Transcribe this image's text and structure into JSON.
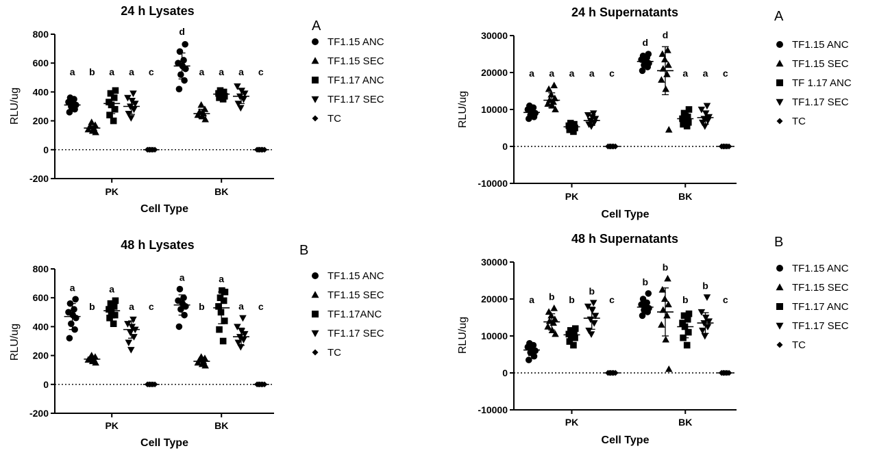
{
  "chart_data": [
    {
      "type": "scatter",
      "title": "24 h Lysates",
      "panel_letter": "A",
      "xlabel": "Cell Type",
      "ylabel": "RLU/ug",
      "categories": [
        "PK",
        "BK"
      ],
      "ylim": [
        -200,
        800
      ],
      "yticks": [
        -200,
        0,
        200,
        400,
        600,
        800
      ],
      "legend": [
        "TF1.15 ANC",
        "TF1.15 SEC",
        "TF1.17 ANC",
        "TF1.17 SEC",
        "TC"
      ],
      "legend_position": "right",
      "series": [
        {
          "name": "TF1.15 ANC",
          "marker": "circle",
          "PK": {
            "points": [
              260,
              280,
              300,
              310,
              320,
              330,
              350,
              360
            ],
            "mean": 310,
            "sd": 30
          },
          "BK": {
            "points": [
              420,
              480,
              520,
              560,
              580,
              600,
              620,
              680,
              730
            ],
            "mean": 580,
            "sd": 90
          }
        },
        {
          "name": "TF1.15 SEC",
          "marker": "triangle-up",
          "PK": {
            "points": [
              120,
              130,
              140,
              150,
              160,
              170,
              190
            ],
            "mean": 150,
            "sd": 25
          },
          "BK": {
            "points": [
              210,
              230,
              240,
              250,
              260,
              280,
              310
            ],
            "mean": 250,
            "sd": 30
          }
        },
        {
          "name": "TF1.17 ANC",
          "marker": "square",
          "PK": {
            "points": [
              200,
              240,
              280,
              310,
              330,
              360,
              390,
              410
            ],
            "mean": 320,
            "sd": 70
          },
          "BK": {
            "points": [
              350,
              360,
              370,
              380,
              390,
              400,
              410
            ],
            "mean": 385,
            "sd": 20
          }
        },
        {
          "name": "TF1.17 SEC",
          "marker": "triangle-down",
          "PK": {
            "points": [
              220,
              250,
              280,
              300,
              320,
              340,
              360,
              390
            ],
            "mean": 300,
            "sd": 55
          },
          "BK": {
            "points": [
              290,
              320,
              350,
              370,
              390,
              410,
              440
            ],
            "mean": 370,
            "sd": 50
          }
        },
        {
          "name": "TC",
          "marker": "diamond",
          "PK": {
            "points": [
              0,
              0,
              0,
              0,
              0,
              0
            ],
            "mean": 0,
            "sd": 0
          },
          "BK": {
            "points": [
              0,
              0,
              0,
              0,
              0,
              0
            ],
            "mean": 0,
            "sd": 0
          }
        }
      ],
      "significance": {
        "PK": [
          "a",
          "b",
          "a",
          "a",
          "c"
        ],
        "BK": [
          "d",
          "a",
          "a",
          "a",
          "c"
        ]
      }
    },
    {
      "type": "scatter",
      "title": "24 h Supernatants",
      "panel_letter": "A",
      "xlabel": "Cell Type",
      "ylabel": "RLU/ug",
      "categories": [
        "PK",
        "BK"
      ],
      "ylim": [
        -10000,
        30000
      ],
      "yticks": [
        -10000,
        0,
        10000,
        20000,
        30000
      ],
      "legend": [
        "TF1.15 ANC",
        "TF1.15 SEC",
        "TF 1.17 ANC",
        "TF1.17 SEC",
        "TC"
      ],
      "legend_position": "right",
      "series": [
        {
          "name": "TF1.15 ANC",
          "marker": "circle",
          "PK": {
            "points": [
              7500,
              8000,
              8500,
              9000,
              9500,
              10000,
              10500,
              11000
            ],
            "mean": 9200,
            "sd": 1200
          },
          "BK": {
            "points": [
              20500,
              21500,
              22000,
              22500,
              23000,
              23500,
              24000,
              24500,
              25000
            ],
            "mean": 23000,
            "sd": 1500
          }
        },
        {
          "name": "TF1.15 SEC",
          "marker": "triangle-up",
          "PK": {
            "points": [
              10000,
              11000,
              11500,
              12000,
              12500,
              13000,
              14000,
              15500,
              16500
            ],
            "mean": 12500,
            "sd": 2000
          },
          "BK": {
            "points": [
              4500,
              15500,
              18000,
              19500,
              21000,
              22000,
              23500,
              25000,
              26000
            ],
            "mean": 20500,
            "sd": 6500
          }
        },
        {
          "name": "TF 1.17 ANC",
          "marker": "square",
          "PK": {
            "points": [
              4000,
              4500,
              5000,
              5300,
              5600,
              6000,
              6300
            ],
            "mean": 5300,
            "sd": 700
          },
          "BK": {
            "points": [
              5500,
              6000,
              6500,
              7000,
              7500,
              8000,
              9000,
              10000
            ],
            "mean": 7500,
            "sd": 1500
          }
        },
        {
          "name": "TF1.17 SEC",
          "marker": "triangle-down",
          "PK": {
            "points": [
              5500,
              6000,
              6500,
              7000,
              7500,
              8000,
              8500,
              9000
            ],
            "mean": 7000,
            "sd": 1300
          },
          "BK": {
            "points": [
              5500,
              6500,
              7000,
              7500,
              8000,
              9000,
              10000,
              11000
            ],
            "mean": 7800,
            "sd": 1800
          }
        },
        {
          "name": "TC",
          "marker": "diamond",
          "PK": {
            "points": [
              0,
              0,
              0,
              0,
              0,
              0
            ],
            "mean": 0,
            "sd": 0
          },
          "BK": {
            "points": [
              0,
              0,
              0,
              0,
              0,
              0
            ],
            "mean": 0,
            "sd": 0
          }
        }
      ],
      "significance": {
        "PK": [
          "a",
          "a",
          "a",
          "a",
          "c"
        ],
        "BK": [
          "d",
          "d",
          "a",
          "a",
          "c"
        ]
      }
    },
    {
      "type": "scatter",
      "title": "48 h Lysates",
      "panel_letter": "B",
      "xlabel": "Cell Type",
      "ylabel": "RLU/ug",
      "categories": [
        "PK",
        "BK"
      ],
      "ylim": [
        -200,
        800
      ],
      "yticks": [
        -200,
        0,
        200,
        400,
        600,
        800
      ],
      "legend": [
        "TF1.15 ANC",
        "TF1.15 SEC",
        "TF1.17ANC",
        "TF1.17 SEC",
        "TC"
      ],
      "legend_position": "right",
      "series": [
        {
          "name": "TF1.15 ANC",
          "marker": "circle",
          "PK": {
            "points": [
              320,
              380,
              420,
              460,
              480,
              500,
              520,
              560,
              590
            ],
            "mean": 470,
            "sd": 90
          },
          "BK": {
            "points": [
              400,
              480,
              520,
              540,
              560,
              580,
              600,
              660
            ],
            "mean": 550,
            "sd": 70
          }
        },
        {
          "name": "TF1.15 SEC",
          "marker": "triangle-up",
          "PK": {
            "points": [
              150,
              160,
              170,
              175,
              180,
              190,
              200
            ],
            "mean": 175,
            "sd": 15
          },
          "BK": {
            "points": [
              130,
              140,
              150,
              160,
              170,
              180,
              190
            ],
            "mean": 160,
            "sd": 20
          }
        },
        {
          "name": "TF1.17ANC",
          "marker": "square",
          "PK": {
            "points": [
              420,
              460,
              480,
              500,
              520,
              540,
              560,
              580
            ],
            "mean": 510,
            "sd": 50
          },
          "BK": {
            "points": [
              300,
              380,
              440,
              500,
              540,
              580,
              600,
              640,
              650
            ],
            "mean": 530,
            "sd": 110
          }
        },
        {
          "name": "TF1.17 SEC",
          "marker": "triangle-down",
          "PK": {
            "points": [
              240,
              290,
              330,
              360,
              380,
              400,
              420,
              450
            ],
            "mean": 380,
            "sd": 60
          },
          "BK": {
            "points": [
              260,
              290,
              310,
              330,
              350,
              370,
              400,
              460
            ],
            "mean": 330,
            "sd": 60
          }
        },
        {
          "name": "TC",
          "marker": "diamond",
          "PK": {
            "points": [
              0,
              0,
              0,
              0,
              0,
              0
            ],
            "mean": 0,
            "sd": 0
          },
          "BK": {
            "points": [
              0,
              0,
              0,
              0,
              0,
              0
            ],
            "mean": 0,
            "sd": 0
          }
        }
      ],
      "significance": {
        "PK": [
          "a",
          "b",
          "a",
          "a",
          "c"
        ],
        "BK": [
          "a",
          "b",
          "a",
          "a",
          "c"
        ]
      }
    },
    {
      "type": "scatter",
      "title": "48 h Supernatants",
      "panel_letter": "B",
      "xlabel": "Cell Type",
      "ylabel": "RLU/ug",
      "categories": [
        "PK",
        "BK"
      ],
      "ylim": [
        -10000,
        30000
      ],
      "yticks": [
        -10000,
        0,
        10000,
        20000,
        30000
      ],
      "legend": [
        "TF1.15 ANC",
        "TF1.15 SEC",
        "TF1.17 ANC",
        "TF1.17 SEC",
        "TC"
      ],
      "legend_position": "right",
      "series": [
        {
          "name": "TF1.15 ANC",
          "marker": "circle",
          "PK": {
            "points": [
              3500,
              4500,
              5500,
              6000,
              6500,
              7000,
              7500,
              8000
            ],
            "mean": 6200,
            "sd": 1500
          },
          "BK": {
            "points": [
              15500,
              16500,
              17000,
              17500,
              18000,
              18500,
              19000,
              20000,
              21500
            ],
            "mean": 17800,
            "sd": 1800
          }
        },
        {
          "name": "TF1.15 SEC",
          "marker": "triangle-up",
          "PK": {
            "points": [
              10500,
              11500,
              12500,
              13500,
              14000,
              14500,
              15500,
              16500,
              17500
            ],
            "mean": 13800,
            "sd": 2200
          },
          "BK": {
            "points": [
              1000,
              9000,
              13000,
              15500,
              17000,
              18500,
              20000,
              22500,
              25500
            ],
            "mean": 16500,
            "sd": 6500
          }
        },
        {
          "name": "TF1.17 ANC",
          "marker": "square",
          "PK": {
            "points": [
              7500,
              8500,
              9500,
              10000,
              10500,
              11000,
              11500,
              12000
            ],
            "mean": 10300,
            "sd": 1500
          },
          "BK": {
            "points": [
              7500,
              9500,
              11000,
              12500,
              13500,
              14500,
              15500,
              16000
            ],
            "mean": 12500,
            "sd": 3000
          }
        },
        {
          "name": "TF1.17 SEC",
          "marker": "triangle-down",
          "PK": {
            "points": [
              10500,
              11500,
              13500,
              14500,
              15500,
              17000,
              18000,
              19000
            ],
            "mean": 14800,
            "sd": 3000
          },
          "BK": {
            "points": [
              10000,
              11500,
              12500,
              13500,
              14000,
              15000,
              16500,
              20500
            ],
            "mean": 13500,
            "sd": 2800
          }
        },
        {
          "name": "TC",
          "marker": "diamond",
          "PK": {
            "points": [
              0,
              0,
              0,
              0,
              0,
              0
            ],
            "mean": 0,
            "sd": 0
          },
          "BK": {
            "points": [
              0,
              0,
              0,
              0,
              0,
              0
            ],
            "mean": 0,
            "sd": 0
          }
        }
      ],
      "significance": {
        "PK": [
          "a",
          "b",
          "b",
          "b",
          "c"
        ],
        "BK": [
          "b",
          "b",
          "b",
          "b",
          "c"
        ]
      }
    }
  ]
}
